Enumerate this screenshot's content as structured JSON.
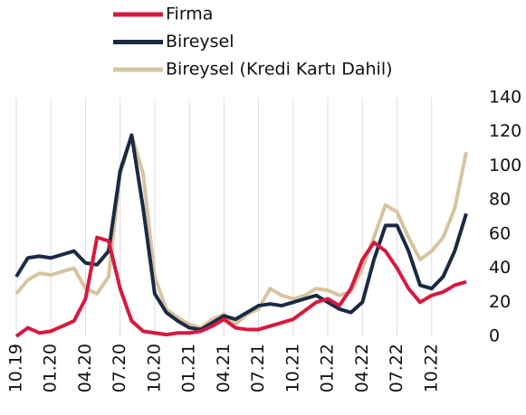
{
  "chart_data": {
    "type": "line",
    "categories": [
      "10.19",
      null,
      null,
      "01.20",
      null,
      null,
      "04.20",
      null,
      null,
      "07.20",
      null,
      null,
      "10.20",
      null,
      null,
      "01.21",
      null,
      null,
      "04.21",
      null,
      null,
      "07.21",
      null,
      null,
      "10.21",
      null,
      null,
      "01.22",
      null,
      null,
      "04.22",
      null,
      null,
      "07.22",
      null,
      null,
      "10.22",
      null,
      null,
      null
    ],
    "series": [
      {
        "name": "Firma",
        "color": "#d7193f",
        "values": [
          0,
          5,
          2,
          3,
          6,
          9,
          22,
          58,
          56,
          28,
          9,
          3,
          2,
          1,
          2,
          2,
          3,
          6,
          10,
          5,
          4,
          4,
          6,
          8,
          10,
          15,
          20,
          22,
          18,
          28,
          45,
          55,
          50,
          40,
          28,
          20,
          24,
          26,
          30,
          32
        ]
      },
      {
        "name": "Bireysel",
        "color": "#1b2a44",
        "values": [
          35,
          46,
          47,
          46,
          48,
          50,
          43,
          42,
          50,
          97,
          118,
          75,
          25,
          14,
          9,
          5,
          4,
          8,
          12,
          10,
          14,
          18,
          19,
          18,
          20,
          22,
          24,
          20,
          16,
          14,
          20,
          45,
          65,
          65,
          50,
          30,
          28,
          35,
          50,
          72
        ]
      },
      {
        "name": "Bireysel (Kredi Kartı Dahil)",
        "color": "#d6c4a0",
        "values": [
          25,
          33,
          37,
          36,
          38,
          40,
          28,
          25,
          35,
          95,
          118,
          95,
          35,
          16,
          11,
          7,
          5,
          10,
          13,
          7,
          13,
          16,
          28,
          24,
          22,
          24,
          28,
          27,
          24,
          26,
          40,
          58,
          77,
          73,
          58,
          45,
          50,
          58,
          75,
          108
        ]
      }
    ],
    "ylim": [
      0,
      140
    ],
    "yticks": [
      0,
      20,
      40,
      60,
      80,
      100,
      120,
      140
    ],
    "grid": true
  }
}
